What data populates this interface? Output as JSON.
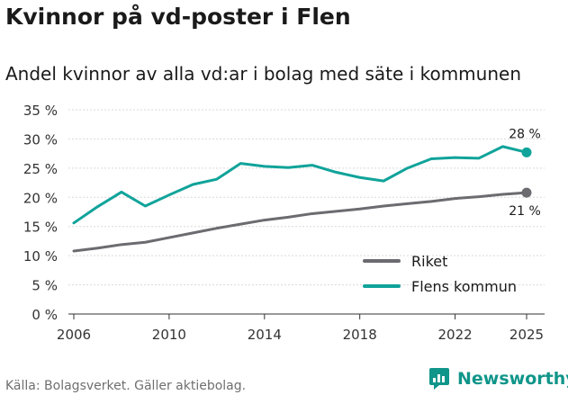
{
  "header": {
    "title": "Kvinnor på vd-poster i Flen",
    "subtitle": "Andel kvinnor av alla vd:ar i bolag med säte i kommunen"
  },
  "footer": {
    "source": "Källa: Bolagsverket. Gäller aktiebolag.",
    "brand": "Newsworthy",
    "brand_color": "#10958a"
  },
  "chart_data": {
    "type": "line",
    "title": "Kvinnor på vd-poster i Flen",
    "subtitle": "Andel kvinnor av alla vd:ar i bolag med säte i kommunen",
    "xlabel": "",
    "ylabel": "",
    "xlim": [
      2006,
      2025
    ],
    "ylim": [
      0,
      35
    ],
    "x_ticks": [
      2006,
      2010,
      2014,
      2018,
      2022,
      2025
    ],
    "y_ticks": [
      0,
      5,
      10,
      15,
      20,
      25,
      30,
      35
    ],
    "y_tick_labels": [
      "0 %",
      "5 %",
      "10 %",
      "15 %",
      "20 %",
      "25 %",
      "30 %",
      "35 %"
    ],
    "grid": "horizontal",
    "legend_position": "bottom-right",
    "x": [
      2006,
      2007,
      2008,
      2009,
      2010,
      2011,
      2012,
      2013,
      2014,
      2015,
      2016,
      2017,
      2018,
      2019,
      2020,
      2021,
      2022,
      2023,
      2024,
      2025
    ],
    "series": [
      {
        "name": "Riket",
        "color": "#6b6b70",
        "values": [
          10.8,
          11.3,
          11.9,
          12.3,
          13.1,
          13.9,
          14.7,
          15.4,
          16.1,
          16.6,
          17.2,
          17.6,
          18.0,
          18.5,
          18.9,
          19.3,
          19.8,
          20.1,
          20.5,
          20.8
        ],
        "end_label": "21 %"
      },
      {
        "name": "Flens kommun",
        "color": "#10a39a",
        "values": [
          15.6,
          18.4,
          20.9,
          18.5,
          20.4,
          22.2,
          23.1,
          25.8,
          25.3,
          25.1,
          25.5,
          24.3,
          23.4,
          22.8,
          25.0,
          26.6,
          26.8,
          26.7,
          28.7,
          27.7
        ],
        "end_label": "28 %"
      }
    ]
  }
}
